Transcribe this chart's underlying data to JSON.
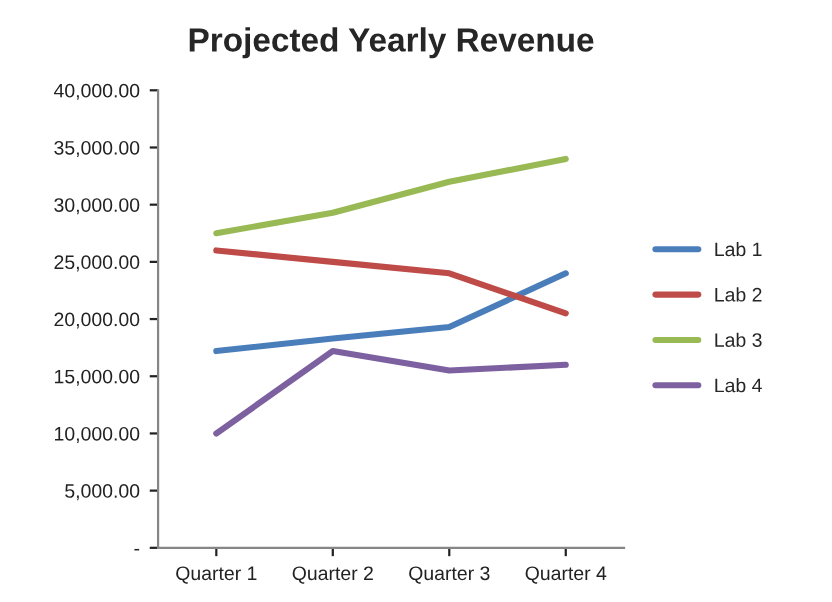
{
  "chart_data": {
    "type": "line",
    "title": "Projected Yearly Revenue",
    "categories": [
      "Quarter 1",
      "Quarter 2",
      "Quarter 3",
      "Quarter 4"
    ],
    "series": [
      {
        "name": "Lab 1",
        "color": "#4a7ebb",
        "values": [
          17200,
          18300,
          19300,
          24000
        ]
      },
      {
        "name": "Lab 2",
        "color": "#be4b48",
        "values": [
          26000,
          25000,
          24000,
          20500
        ]
      },
      {
        "name": "Lab 3",
        "color": "#98b954",
        "values": [
          27500,
          29300,
          32000,
          34000
        ]
      },
      {
        "name": "Lab 4",
        "color": "#7d60a0",
        "values": [
          10000,
          17200,
          15500,
          16000
        ]
      }
    ],
    "ylim": [
      0,
      40000
    ],
    "yticks": [
      {
        "value": 0,
        "label": "-"
      },
      {
        "value": 5000,
        "label": "5,000.00"
      },
      {
        "value": 10000,
        "label": "10,000.00"
      },
      {
        "value": 15000,
        "label": "15,000.00"
      },
      {
        "value": 20000,
        "label": "20,000.00"
      },
      {
        "value": 25000,
        "label": "25,000.00"
      },
      {
        "value": 30000,
        "label": "30,000.00"
      },
      {
        "value": 35000,
        "label": "35,000.00"
      },
      {
        "value": 40000,
        "label": "40,000.00"
      }
    ],
    "legend": "right",
    "grid": false,
    "marker": "none",
    "line_style": "solid"
  }
}
